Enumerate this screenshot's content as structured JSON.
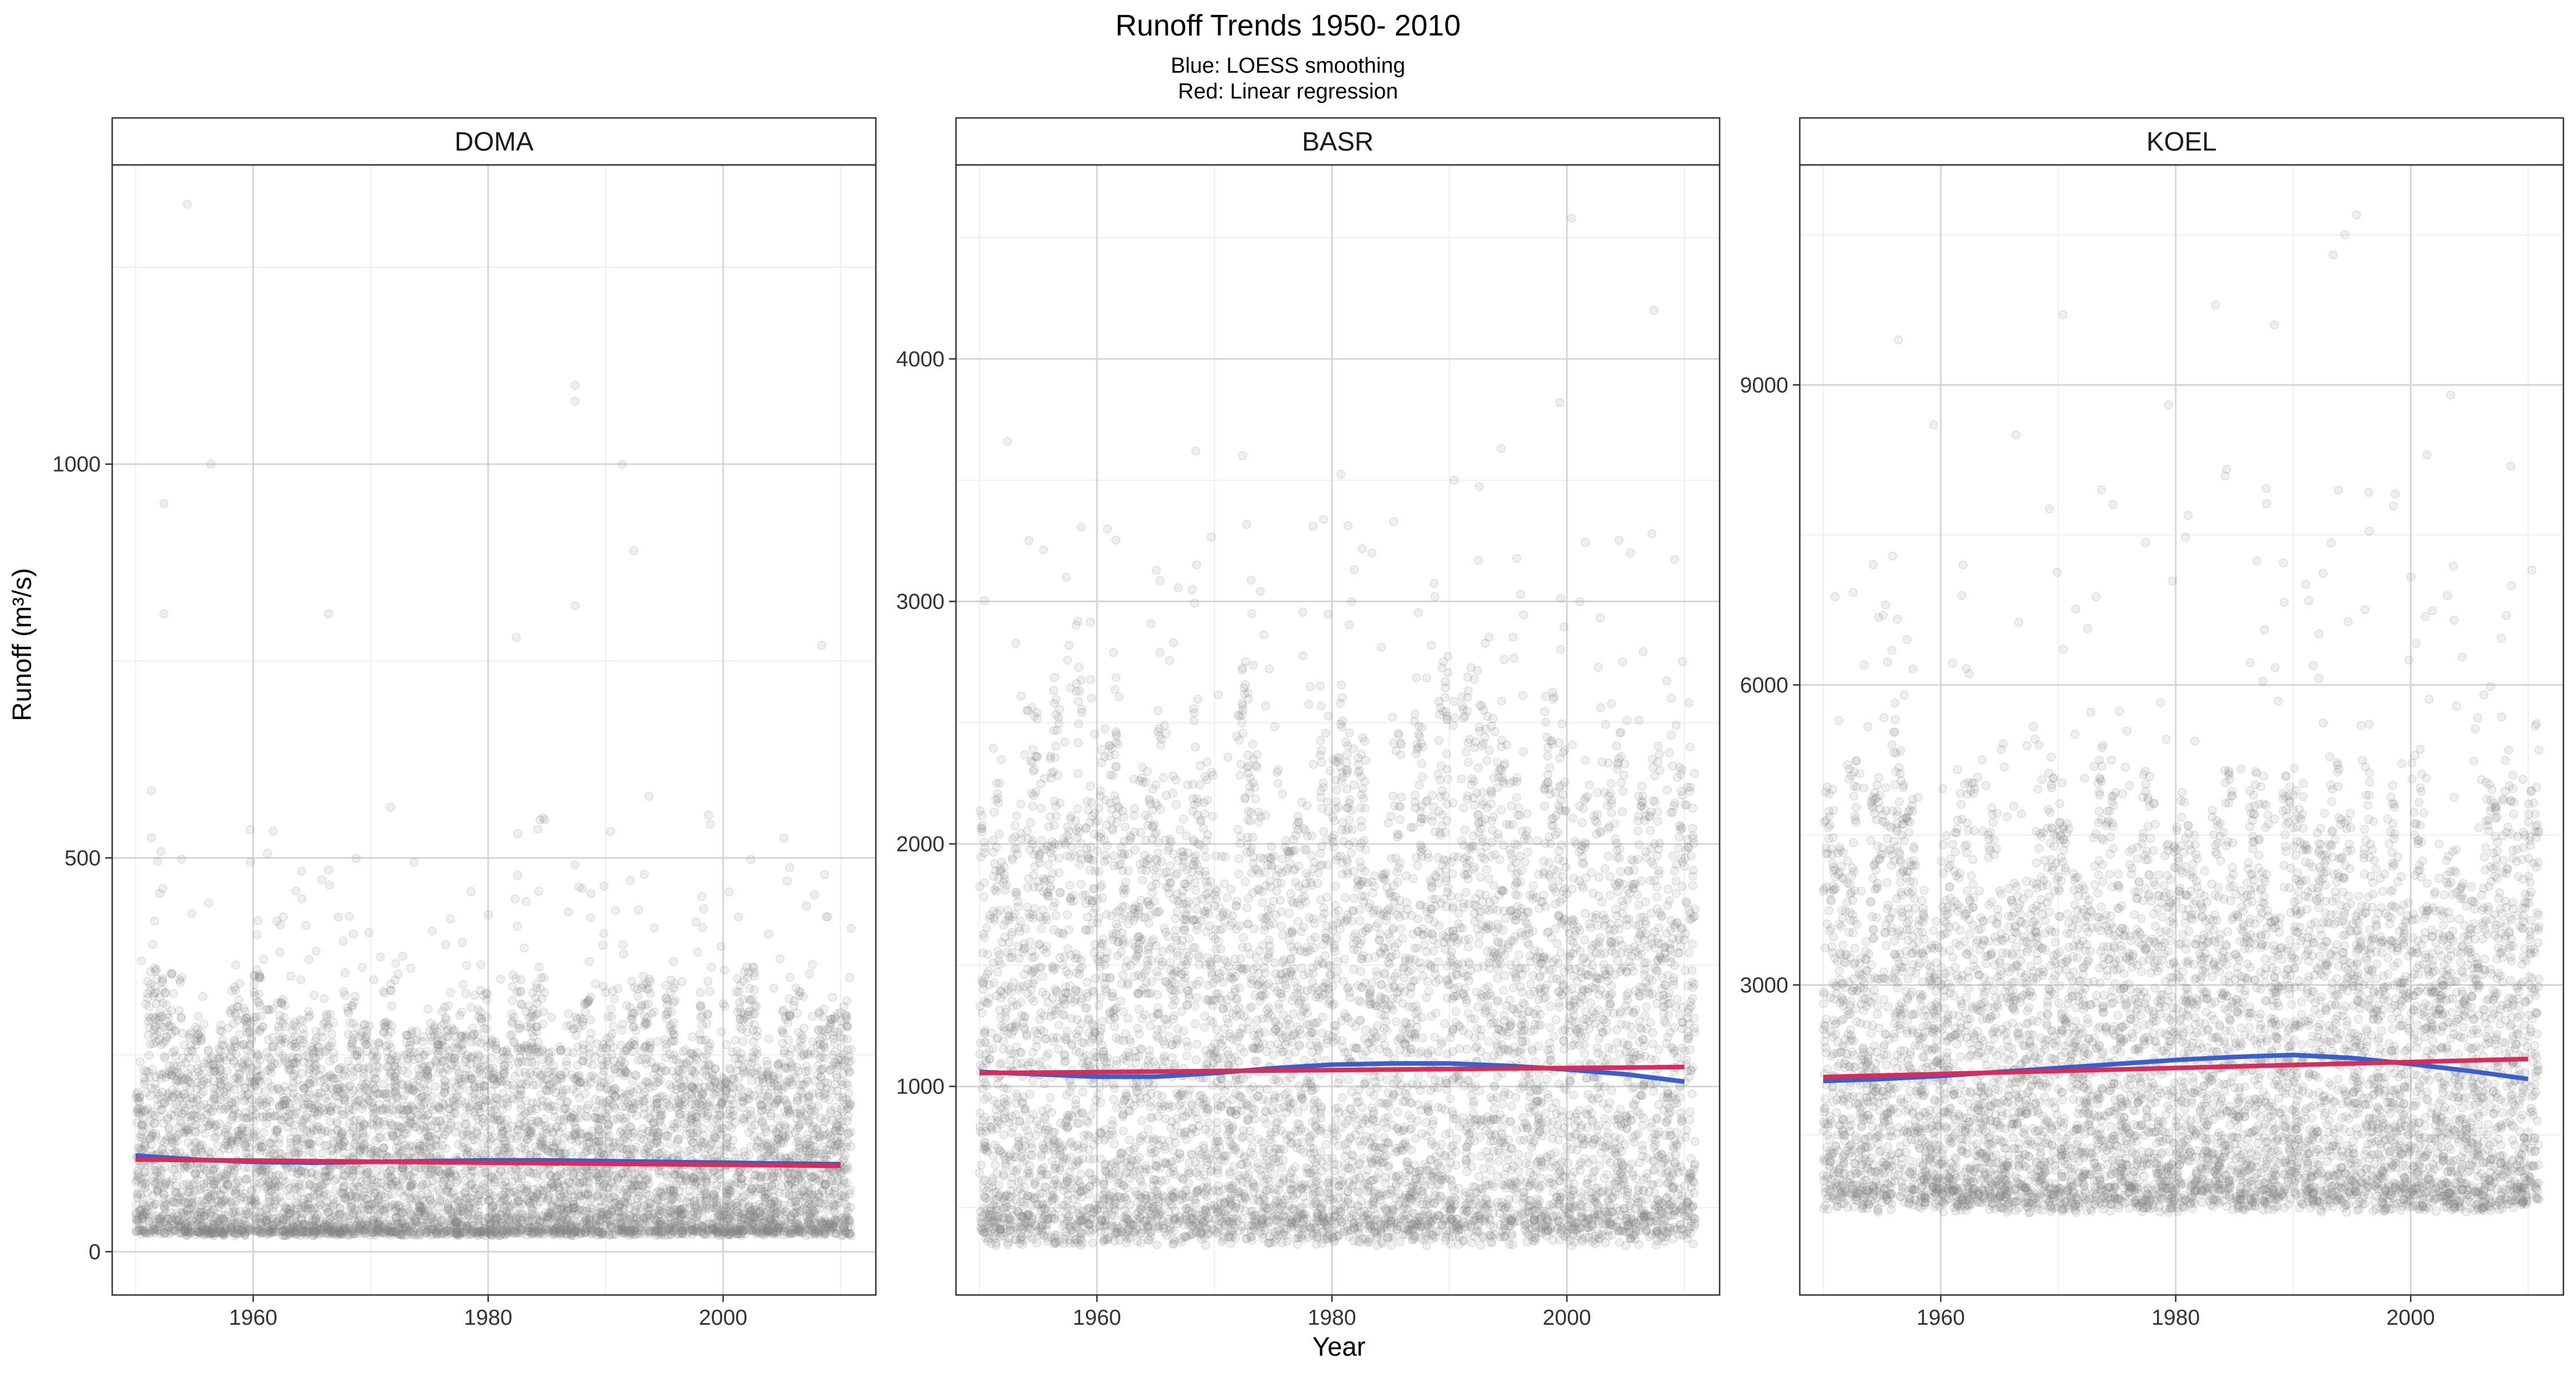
{
  "figure": {
    "title": "Runoff Trends 1950- 2010",
    "subtitle_line1": "Blue: LOESS smoothing",
    "subtitle_line2": "Red: Linear regression",
    "xlabel": "Year",
    "ylabel": "Runoff (m³/s)"
  },
  "colors": {
    "points": "#808080",
    "loess": "#3a5fcd",
    "linear": "#d62d5a",
    "grid_major": "#d6d6d6",
    "grid_minor": "#ebebeb"
  },
  "chart_data": [
    {
      "type": "scatter",
      "panel": "DOMA",
      "xlabel": "Year",
      "ylabel": "Runoff (m³/s)",
      "xlim": [
        1948,
        2013
      ],
      "ylim": [
        -55,
        1380
      ],
      "x_ticks": [
        1960,
        1980,
        2000
      ],
      "y_ticks": [
        0,
        500,
        1000
      ],
      "x_range_of_points": [
        1950,
        2010
      ],
      "point_spread": {
        "typical_min": 22,
        "dense_upper": 300,
        "typical_max": 520,
        "max": 1330
      },
      "notable_peaks": [
        {
          "x": 1954,
          "y": 1330
        },
        {
          "x": 1987,
          "y": 1100
        },
        {
          "x": 1987,
          "y": 1080
        },
        {
          "x": 1956,
          "y": 1000
        },
        {
          "x": 1991,
          "y": 1000
        },
        {
          "x": 1952,
          "y": 950
        },
        {
          "x": 1952,
          "y": 810
        },
        {
          "x": 1987,
          "y": 820
        },
        {
          "x": 1966,
          "y": 810
        },
        {
          "x": 2008,
          "y": 770
        },
        {
          "x": 1982,
          "y": 780
        },
        {
          "x": 1992,
          "y": 890
        }
      ],
      "series": [
        {
          "name": "LOESS",
          "x": [
            1950,
            1955,
            1960,
            1965,
            1970,
            1975,
            1980,
            1985,
            1990,
            1995,
            2000,
            2005,
            2010
          ],
          "y": [
            122,
            117,
            114,
            113,
            114,
            115,
            116,
            116,
            115,
            114,
            113,
            112,
            111
          ]
        },
        {
          "name": "Linear",
          "x": [
            1950,
            2010
          ],
          "y": [
            117,
            109
          ]
        }
      ]
    },
    {
      "type": "scatter",
      "panel": "BASR",
      "xlabel": "Year",
      "ylabel": "Runoff (m³/s)",
      "xlim": [
        1948,
        2013
      ],
      "ylim": [
        140,
        4800
      ],
      "x_ticks": [
        1960,
        1980,
        2000
      ],
      "y_ticks": [
        1000,
        2000,
        3000,
        4000
      ],
      "x_range_of_points": [
        1950,
        2010
      ],
      "point_spread": {
        "typical_min": 380,
        "dense_upper": 2300,
        "typical_max": 3200,
        "max": 4580
      },
      "notable_peaks": [
        {
          "x": 2000,
          "y": 4580
        },
        {
          "x": 2007,
          "y": 4200
        },
        {
          "x": 1999,
          "y": 3820
        },
        {
          "x": 1952,
          "y": 3660
        },
        {
          "x": 1968,
          "y": 3620
        },
        {
          "x": 1972,
          "y": 3600
        },
        {
          "x": 1994,
          "y": 3630
        },
        {
          "x": 1990,
          "y": 3500
        },
        {
          "x": 1978,
          "y": 3310
        },
        {
          "x": 2005,
          "y": 3200
        },
        {
          "x": 1983,
          "y": 3200
        },
        {
          "x": 1957,
          "y": 3100
        }
      ],
      "series": [
        {
          "name": "LOESS",
          "x": [
            1950,
            1955,
            1960,
            1965,
            1970,
            1975,
            1980,
            1985,
            1990,
            1995,
            2000,
            2005,
            2010
          ],
          "y": [
            1060,
            1050,
            1040,
            1040,
            1055,
            1075,
            1090,
            1095,
            1095,
            1085,
            1070,
            1050,
            1020
          ]
        },
        {
          "name": "Linear",
          "x": [
            1950,
            2010
          ],
          "y": [
            1055,
            1080
          ]
        }
      ]
    },
    {
      "type": "scatter",
      "panel": "KOEL",
      "xlabel": "Year",
      "ylabel": "Runoff (m³/s)",
      "xlim": [
        1948,
        2013
      ],
      "ylim": [
        -100,
        11200
      ],
      "x_ticks": [
        1960,
        1980,
        2000
      ],
      "y_ticks": [
        3000,
        6000,
        9000
      ],
      "x_range_of_points": [
        1950,
        2010
      ],
      "point_spread": {
        "typical_min": 800,
        "dense_upper": 4500,
        "typical_max": 7500,
        "max": 10700
      },
      "notable_peaks": [
        {
          "x": 1995,
          "y": 10700
        },
        {
          "x": 1994,
          "y": 10500
        },
        {
          "x": 1993,
          "y": 10300
        },
        {
          "x": 1970,
          "y": 9700
        },
        {
          "x": 1988,
          "y": 9600
        },
        {
          "x": 1956,
          "y": 9450
        },
        {
          "x": 1983,
          "y": 9800
        },
        {
          "x": 1979,
          "y": 8800
        },
        {
          "x": 1959,
          "y": 8600
        },
        {
          "x": 2003,
          "y": 8900
        },
        {
          "x": 1966,
          "y": 8500
        },
        {
          "x": 2001,
          "y": 8300
        }
      ],
      "series": [
        {
          "name": "LOESS",
          "x": [
            1950,
            1955,
            1960,
            1965,
            1970,
            1975,
            1980,
            1985,
            1990,
            1995,
            2000,
            2005,
            2010
          ],
          "y": [
            2040,
            2060,
            2090,
            2130,
            2170,
            2210,
            2250,
            2280,
            2300,
            2270,
            2210,
            2140,
            2060
          ]
        },
        {
          "name": "Linear",
          "x": [
            1950,
            2010
          ],
          "y": [
            2080,
            2260
          ]
        }
      ]
    }
  ]
}
